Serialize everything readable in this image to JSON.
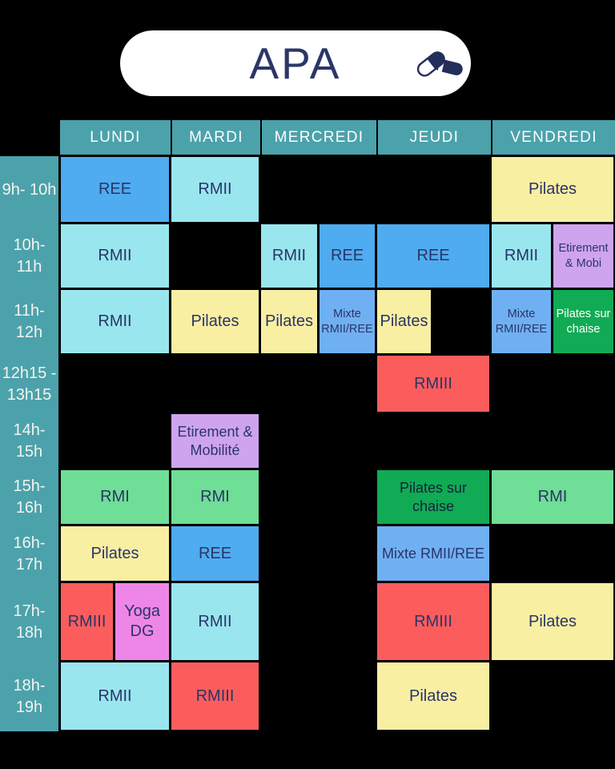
{
  "title": {
    "text": "APA"
  },
  "palette": {
    "background": "#000000",
    "teal": "#4BA2AB",
    "header_text": "#FFFFFF",
    "time_text": "#F4F3EF",
    "cell_text_navy": "#2B3467",
    "title_navy": "#2B3767",
    "ree": "#4FACF0",
    "rmii": "#99E6EF",
    "rmiii": "#FB5D5D",
    "rmi": "#6FDE96",
    "pilates": "#F9EFA3",
    "mixte": "#6FB0F3",
    "etirement": "#CFA4EF",
    "chaise": "#10AB54",
    "yoga": "#EE86E8"
  },
  "icons": {
    "pills": "pills-icon"
  },
  "schedule": {
    "days": [
      "LUNDI",
      "MARDI",
      "MERCREDI",
      "JEUDI",
      "VENDREDI"
    ],
    "time_slots": [
      "9h- 10h",
      "10h-\n11h",
      "11h-\n12h",
      "12h15 -\n13h15",
      "14h-\n15h",
      "15h-\n16h",
      "16h-\n17h",
      "17h-\n18h",
      "18h-\n19h"
    ],
    "cells": [
      {
        "row": 0,
        "day": "LUNDI",
        "part": "full",
        "label": "REE",
        "type": "ree"
      },
      {
        "row": 0,
        "day": "MARDI",
        "part": "full",
        "label": "RMII",
        "type": "rmii"
      },
      {
        "row": 0,
        "day": "VENDREDI",
        "part": "full",
        "label": "Pilates",
        "type": "pilates"
      },
      {
        "row": 1,
        "day": "LUNDI",
        "part": "full",
        "label": "RMII",
        "type": "rmii"
      },
      {
        "row": 1,
        "day": "MERCREDI",
        "part": "left",
        "label": "RMII",
        "type": "rmii"
      },
      {
        "row": 1,
        "day": "MERCREDI",
        "part": "right",
        "label": "REE",
        "type": "ree"
      },
      {
        "row": 1,
        "day": "JEUDI",
        "part": "full",
        "label": "REE",
        "type": "ree"
      },
      {
        "row": 1,
        "day": "VENDREDI",
        "part": "left",
        "label": "RMII",
        "type": "rmii"
      },
      {
        "row": 1,
        "day": "VENDREDI",
        "part": "right",
        "label": "Etirement & Mobi",
        "type": "etirement",
        "size": "sm"
      },
      {
        "row": 2,
        "day": "LUNDI",
        "part": "full",
        "label": "RMII",
        "type": "rmii"
      },
      {
        "row": 2,
        "day": "MARDI",
        "part": "full",
        "label": "Pilates",
        "type": "pilates"
      },
      {
        "row": 2,
        "day": "MERCREDI",
        "part": "left",
        "label": "Pilates",
        "type": "pilates"
      },
      {
        "row": 2,
        "day": "MERCREDI",
        "part": "right",
        "label": "Mixte RMII/REE",
        "type": "mixte",
        "size": "sm"
      },
      {
        "row": 2,
        "day": "JEUDI",
        "part": "left",
        "label": "Pilates",
        "type": "pilates"
      },
      {
        "row": 2,
        "day": "VENDREDI",
        "part": "left",
        "label": "Mixte RMII/REE",
        "type": "mixte",
        "size": "sm"
      },
      {
        "row": 2,
        "day": "VENDREDI",
        "part": "right",
        "label": "Pilates sur chaise",
        "type": "chaise",
        "size": "sm",
        "tone": "light"
      },
      {
        "row": 3,
        "day": "JEUDI",
        "part": "full",
        "label": "RMIII",
        "type": "rmiii"
      },
      {
        "row": 4,
        "day": "MARDI",
        "part": "full",
        "label": "Etirement & Mobilité",
        "type": "etirement",
        "size": "md"
      },
      {
        "row": 5,
        "day": "LUNDI",
        "part": "full",
        "label": "RMI",
        "type": "rmi"
      },
      {
        "row": 5,
        "day": "MARDI",
        "part": "full",
        "label": "RMI",
        "type": "rmi"
      },
      {
        "row": 5,
        "day": "JEUDI",
        "part": "full",
        "label": "Pilates sur chaise",
        "type": "chaise",
        "size": "md",
        "tone": "dark"
      },
      {
        "row": 5,
        "day": "VENDREDI",
        "part": "full",
        "label": "RMI",
        "type": "rmi"
      },
      {
        "row": 6,
        "day": "LUNDI",
        "part": "full",
        "label": "Pilates",
        "type": "pilates"
      },
      {
        "row": 6,
        "day": "MARDI",
        "part": "full",
        "label": "REE",
        "type": "ree"
      },
      {
        "row": 6,
        "day": "JEUDI",
        "part": "full",
        "label": "Mixte RMII/REE",
        "type": "mixte",
        "size": "md"
      },
      {
        "row": 7,
        "day": "LUNDI",
        "part": "left",
        "label": "RMIII",
        "type": "rmiii"
      },
      {
        "row": 7,
        "day": "LUNDI",
        "part": "right",
        "label": "Yoga DG",
        "type": "yoga"
      },
      {
        "row": 7,
        "day": "MARDI",
        "part": "full",
        "label": "RMII",
        "type": "rmii"
      },
      {
        "row": 7,
        "day": "JEUDI",
        "part": "full",
        "label": "RMIII",
        "type": "rmiii"
      },
      {
        "row": 7,
        "day": "VENDREDI",
        "part": "full",
        "label": "Pilates",
        "type": "pilates"
      },
      {
        "row": 8,
        "day": "LUNDI",
        "part": "full",
        "label": "RMII",
        "type": "rmii"
      },
      {
        "row": 8,
        "day": "MARDI",
        "part": "full",
        "label": "RMIII",
        "type": "rmiii"
      },
      {
        "row": 8,
        "day": "JEUDI",
        "part": "full",
        "label": "Pilates",
        "type": "pilates"
      }
    ]
  }
}
